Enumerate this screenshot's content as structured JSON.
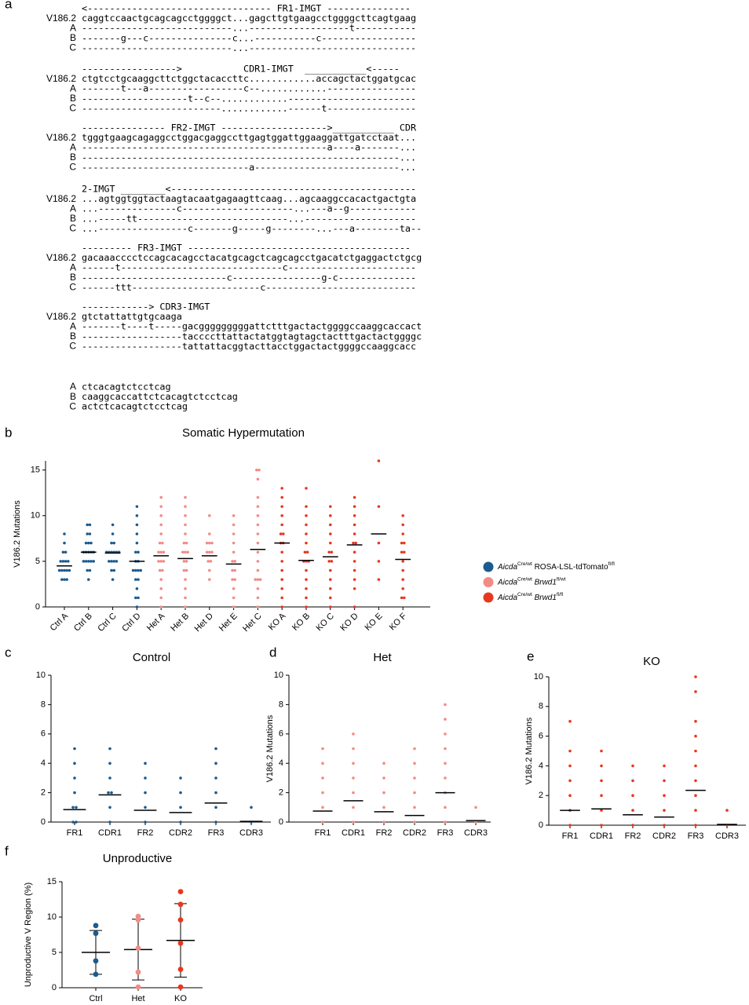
{
  "panel_labels": [
    "a",
    "b",
    "c",
    "d",
    "e",
    "f"
  ],
  "alignment": {
    "blocks": [
      {
        "rows": [
          {
            "seq": "<--------------------------------- FR1-IMGT ---------------"
          },
          {
            "label": "V186.2",
            "seq": "caggtccaactgcagcagcctggggct...gagcttgtgaagcctggggcttcagtgaag"
          },
          {
            "label": "A",
            "seq": "---------------------------...------------------t-----------"
          },
          {
            "label": "B",
            "seq": "-------g---c---------------c...-----------c-----------------"
          },
          {
            "label": "C",
            "seq": "---------------------------...------------------------------"
          }
        ]
      },
      {
        "rows": [
          {
            "seq": "----------------->           CDR1-IMGT  ___________<-----"
          },
          {
            "label": "V186.2",
            "seq": "ctgtcctgcaaggcttctggctacaccttc............accagctactggatgcac"
          },
          {
            "label": "A",
            "seq": "-------t---a-----------------c--............----------------"
          },
          {
            "label": "B",
            "seq": "-------------------t--c--............-----------------------"
          },
          {
            "label": "C",
            "seq": "-------------------------............------t----------------"
          }
        ]
      },
      {
        "rows": [
          {
            "seq": "--------------- FR2-IMGT ------------------->___________ CDR"
          },
          {
            "label": "V186.2",
            "seq": "tgggtgaagcagaggcctggacgaggccttgagtggattggaaggattgatcctaat..."
          },
          {
            "label": "A",
            "seq": "--------------------------------------------a----a-------..."
          },
          {
            "label": "B",
            "seq": "---------------------------------------------------------..."
          },
          {
            "label": "C",
            "seq": "------------------------------a--------------------------..."
          }
        ]
      },
      {
        "rows": [
          {
            "seq": "2-IMGT ________<--------------------------------------------"
          },
          {
            "label": "V186.2",
            "seq": "...agtggtggtactaagtacaatgagaagttcaag...agcaaggccacactgactgta"
          },
          {
            "label": "A",
            "seq": "...--------------c--------------------...---a--g------------"
          },
          {
            "label": "B",
            "seq": "...-----tt---------------------------...--------------------"
          },
          {
            "label": "C",
            "seq": "...----------------c-------g-----g--------...---a--------ta--"
          }
        ]
      },
      {
        "rows": [
          {
            "seq": "--------- FR3-IMGT ----------------------------------------"
          },
          {
            "label": "V186.2",
            "seq": "gacaaacccctccagcacagcctacatgcagctcagcagcctgacatctgaggactctgcg"
          },
          {
            "label": "A",
            "seq": "------t-----------------------------c-----------------------"
          },
          {
            "label": "B",
            "seq": "--------------------------c----------------g-c--------------"
          },
          {
            "label": "C",
            "seq": "------ttt-----------------------c---------------------------"
          }
        ]
      },
      {
        "rows": [
          {
            "seq": "------------> CDR3-IMGT"
          },
          {
            "label": "V186.2",
            "seq": "gtctattattgtgcaaga"
          },
          {
            "label": "A",
            "seq": "-------t----t-----gacgggggggggattctttgactactggggccaaggcaccact"
          },
          {
            "label": "B",
            "seq": "------------------taccccttattactatggtagtagctactttgactactggggc"
          },
          {
            "label": "C",
            "seq": "------------------tattattacggtacttacctggactactggggccaaggcacc"
          }
        ]
      },
      {
        "rows": [
          {
            "label": "A",
            "seq": "ctcacagtctcctcag"
          },
          {
            "label": "B",
            "seq": "caaggcaccattctcacagtctcctcag"
          },
          {
            "label": "C",
            "seq": "actctcacagtctcctcag"
          }
        ]
      }
    ]
  },
  "chart_data": [
    {
      "type": "strip",
      "title": "Somatic Hypermutation",
      "ylabel": "V186.2 Mutations",
      "categories": [
        "Ctrl A",
        "Ctrl B",
        "Ctrl C",
        "Ctrl D",
        "Het A",
        "Het B",
        "Het D",
        "Het E",
        "Het C",
        "KO A",
        "KO B",
        "KO C",
        "KO D",
        "KO E",
        "KO F"
      ],
      "colors": [
        "#1b5b90",
        "#1b5b90",
        "#1b5b90",
        "#1b5b90",
        "#f28b86",
        "#f28b86",
        "#f28b86",
        "#f28b86",
        "#f28b86",
        "#e8371f",
        "#e8371f",
        "#e8371f",
        "#e8371f",
        "#e8371f",
        "#e8371f"
      ],
      "points": [
        [
          3,
          3,
          3,
          4,
          4,
          4,
          4,
          4,
          5,
          5,
          5,
          5,
          6,
          6,
          7,
          8
        ],
        [
          3,
          4,
          4,
          5,
          5,
          5,
          5,
          5,
          6,
          6,
          6,
          6,
          6,
          7,
          7,
          7,
          8,
          8,
          9,
          9
        ],
        [
          3,
          4,
          4,
          5,
          5,
          5,
          5,
          6,
          6,
          6,
          6,
          6,
          6,
          7,
          7,
          8,
          9
        ],
        [
          0,
          1,
          1,
          2,
          3,
          3,
          4,
          4,
          4,
          4,
          5,
          5,
          6,
          6,
          7,
          8,
          9,
          10,
          11
        ],
        [
          0,
          1,
          2,
          3,
          4,
          4,
          5,
          5,
          5,
          6,
          6,
          6,
          7,
          7,
          8,
          9,
          10,
          11,
          12
        ],
        [
          0,
          1,
          2,
          3,
          4,
          4,
          5,
          5,
          6,
          6,
          6,
          7,
          7,
          8,
          9,
          10,
          11,
          12
        ],
        [
          3,
          4,
          5,
          5,
          6,
          6,
          6,
          7,
          7,
          7,
          8,
          10
        ],
        [
          0,
          1,
          2,
          3,
          3,
          4,
          4,
          5,
          5,
          6,
          7,
          8,
          9,
          10
        ],
        [
          0,
          1,
          2,
          3,
          3,
          3,
          4,
          5,
          6,
          7,
          8,
          9,
          10,
          11,
          12,
          14,
          15,
          15
        ],
        [
          0,
          1,
          2,
          3,
          4,
          5,
          6,
          7,
          7,
          8,
          8,
          9,
          10,
          11,
          12,
          13
        ],
        [
          0,
          1,
          2,
          3,
          4,
          5,
          5,
          5,
          6,
          6,
          7,
          8,
          9,
          10,
          11,
          13
        ],
        [
          0,
          1,
          2,
          3,
          4,
          5,
          5,
          6,
          6,
          7,
          8,
          9,
          10,
          11
        ],
        [
          0,
          2,
          3,
          4,
          5,
          6,
          7,
          7,
          8,
          9,
          10,
          11,
          12
        ],
        [
          3,
          5,
          7,
          11,
          16
        ],
        [
          1,
          1,
          2,
          3,
          4,
          5,
          6,
          6,
          7,
          7,
          8,
          9,
          10
        ]
      ],
      "means": [
        4.5,
        6,
        5.9,
        5,
        5.6,
        5.3,
        5.6,
        4.7,
        6.3,
        7,
        5.1,
        5.5,
        6.8,
        8,
        5.2
      ],
      "ylim": [
        0,
        16
      ],
      "yticks": [
        0,
        5,
        10,
        15
      ],
      "legend": {
        "entries": [
          {
            "color": "#1b5b90",
            "parts": [
              {
                "text": "Aicda",
                "style": "italic"
              },
              {
                "text": "Cre/wt",
                "style": "sup"
              },
              {
                "text": " ROSA-LSL-tdTomato"
              },
              {
                "text": "fl/fl",
                "style": "sup"
              }
            ]
          },
          {
            "color": "#f28b86",
            "parts": [
              {
                "text": "Aicda",
                "style": "italic"
              },
              {
                "text": "Cre/wt",
                "style": "sup"
              },
              {
                "text": " Brwd1",
                "style": "italic"
              },
              {
                "text": "fl/wt",
                "style": "sup"
              }
            ]
          },
          {
            "color": "#e8371f",
            "parts": [
              {
                "text": "Aicda",
                "style": "italic"
              },
              {
                "text": "Cre/wt",
                "style": "sup"
              },
              {
                "text": " Brwd1",
                "style": "italic"
              },
              {
                "text": "fl/fl",
                "style": "sup"
              }
            ]
          }
        ]
      }
    },
    {
      "type": "strip",
      "title": "Control",
      "color": "#1b5b90",
      "categories": [
        "FR1",
        "CDR1",
        "FR2",
        "CDR2",
        "FR3",
        "CDR3"
      ],
      "points": [
        [
          0,
          0,
          1,
          1,
          2,
          3,
          4,
          5
        ],
        [
          0,
          1,
          2,
          2,
          3,
          4,
          5
        ],
        [
          0,
          1,
          2,
          3,
          4
        ],
        [
          0,
          1,
          2,
          3
        ],
        [
          0,
          1,
          2,
          3,
          4,
          5
        ],
        [
          0,
          1
        ]
      ],
      "means": [
        0.85,
        1.85,
        0.8,
        0.65,
        1.3,
        0.05
      ],
      "ylim": [
        0,
        10
      ],
      "yticks": [
        0,
        2,
        4,
        6,
        8,
        10
      ]
    },
    {
      "type": "strip",
      "title": "Het",
      "ylabel": "V186.2 Mutations",
      "color": "#f28b86",
      "categories": [
        "FR1",
        "CDR1",
        "FR2",
        "CDR2",
        "FR3",
        "CDR3"
      ],
      "points": [
        [
          0,
          1,
          2,
          3,
          4,
          5
        ],
        [
          0,
          1,
          2,
          3,
          4,
          5,
          6
        ],
        [
          0,
          1,
          2,
          3,
          4
        ],
        [
          0,
          1,
          2,
          3,
          4,
          5
        ],
        [
          0,
          1,
          2,
          3,
          4,
          5,
          6,
          7,
          8
        ],
        [
          0,
          1
        ]
      ],
      "means": [
        0.75,
        1.45,
        0.7,
        0.45,
        2,
        0.1
      ],
      "ylim": [
        0,
        10
      ],
      "yticks": [
        0,
        2,
        4,
        6,
        8,
        10
      ]
    },
    {
      "type": "strip",
      "title": "KO",
      "ylabel": "V186.2 Mutations",
      "color": "#e8371f",
      "categories": [
        "FR1",
        "CDR1",
        "FR2",
        "CDR2",
        "FR3",
        "CDR3"
      ],
      "points": [
        [
          0,
          1,
          2,
          3,
          4,
          5,
          7
        ],
        [
          0,
          1,
          2,
          3,
          4,
          5
        ],
        [
          0,
          1,
          2,
          3,
          4
        ],
        [
          0,
          1,
          2,
          3,
          4
        ],
        [
          0,
          1,
          2,
          3,
          4,
          5,
          6,
          7,
          9,
          10
        ],
        [
          0,
          1
        ]
      ],
      "means": [
        1,
        1.1,
        0.7,
        0.55,
        2.35,
        0.05
      ],
      "ylim": [
        0,
        10
      ],
      "yticks": [
        0,
        2,
        4,
        6,
        8,
        10
      ]
    },
    {
      "type": "dot_sd",
      "title": "Unproductive",
      "ylabel": "Unproductive V Region (%)",
      "categories": [
        "Ctrl",
        "Het",
        "KO"
      ],
      "colors": [
        "#1b5b90",
        "#f28b86",
        "#e8371f"
      ],
      "points": [
        [
          8.8,
          7.7,
          3.8,
          1.9
        ],
        [
          10.1,
          9.6,
          5.6,
          2.2,
          0.1
        ],
        [
          13.6,
          11.8,
          9.6,
          6.3,
          2.6,
          0.1
        ]
      ],
      "means": [
        5,
        5.4,
        6.7
      ],
      "sd": [
        3.1,
        4.3,
        5.2
      ],
      "ylim": [
        0,
        15
      ],
      "yticks": [
        0,
        5,
        10,
        15
      ]
    }
  ]
}
